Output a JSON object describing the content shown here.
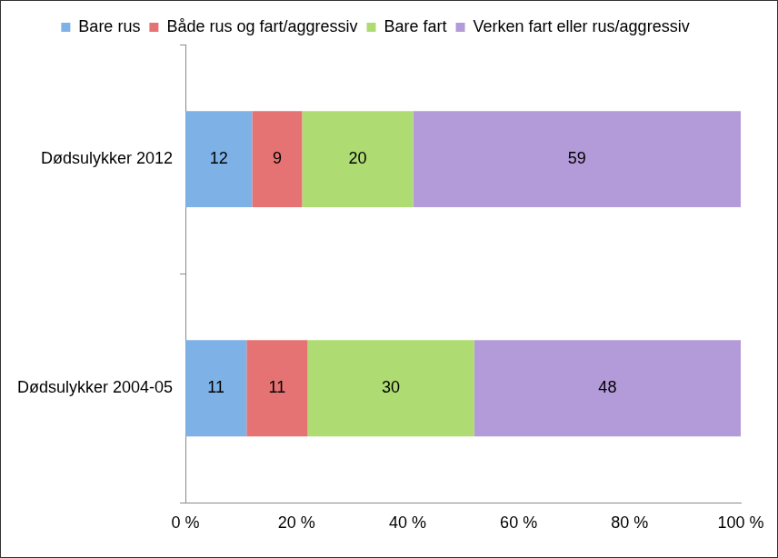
{
  "chart_data": {
    "type": "bar",
    "orientation": "horizontal",
    "stacked": true,
    "data_labels": true,
    "grid": false,
    "legend": "top",
    "categories": [
      "Dødsulykker 2012",
      "Dødsulykker 2004-05"
    ],
    "series": [
      {
        "name": "Bare rus",
        "color": "#7eb1e6",
        "values": [
          12,
          11
        ]
      },
      {
        "name": "Både rus og fart/aggressiv",
        "color": "#e57373",
        "values": [
          9,
          11
        ]
      },
      {
        "name": "Bare fart",
        "color": "#aedb72",
        "values": [
          20,
          30
        ]
      },
      {
        "name": "Verken fart eller rus/aggressiv",
        "color": "#b39ad8",
        "values": [
          59,
          48
        ]
      }
    ],
    "xlim": [
      0,
      100
    ],
    "xticks": [
      {
        "value": 0,
        "label": "0 %"
      },
      {
        "value": 20,
        "label": "20 %"
      },
      {
        "value": 40,
        "label": "40 %"
      },
      {
        "value": 60,
        "label": "60 %"
      },
      {
        "value": 80,
        "label": "80 %"
      },
      {
        "value": 100,
        "label": "100 %"
      }
    ]
  }
}
